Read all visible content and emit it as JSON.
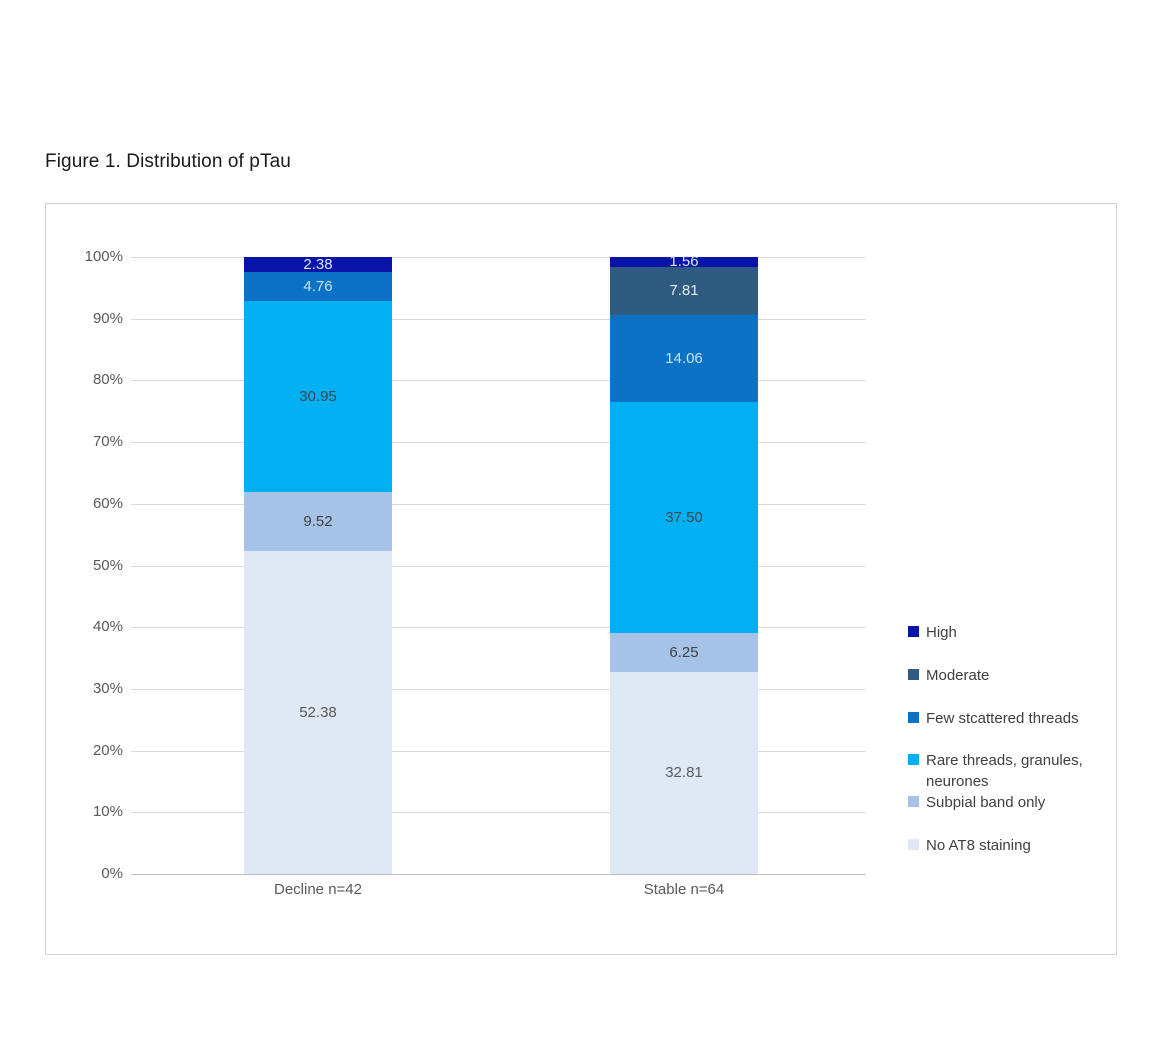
{
  "page": {
    "title": "Figure 1. Distribution of pTau"
  },
  "chart_data": {
    "type": "bar",
    "subtype": "stacked-100-percent-column",
    "title": "Figure 1. Distribution of pTau",
    "categories": [
      "Decline n=42",
      "Stable n=64"
    ],
    "series": [
      {
        "name": "High",
        "color": "#0813a8",
        "label_color": "#dce6f6",
        "values": [
          2.38,
          1.56
        ]
      },
      {
        "name": "Moderate",
        "color": "#2e5b7f",
        "label_color": "#e6edf5",
        "values": [
          0,
          7.81
        ]
      },
      {
        "name": "Few stcattered threads",
        "color": "#0b72c6",
        "label_color": "#c9e2f6",
        "values": [
          4.76,
          14.06
        ]
      },
      {
        "name": "Rare threads, granules, neurones",
        "color": "#00b0f0",
        "label_color": "#3d4752",
        "values": [
          30.95,
          37.5
        ]
      },
      {
        "name": "Subpial band only",
        "color": "#a6c3e7",
        "label_color": "#404040",
        "values": [
          9.52,
          6.25
        ]
      },
      {
        "name": "No AT8 staining",
        "color": "#dee9f5",
        "label_color": "#595959",
        "values": [
          52.38,
          32.81
        ]
      }
    ],
    "xlabel": "",
    "ylabel": "",
    "ylim": [
      0,
      100
    ],
    "ytick_step": 10,
    "ytick_format": "percent",
    "value_label_decimals": 2,
    "grid": true,
    "legend_position": "right",
    "axis_text_color": "#595959",
    "gridline_color": "#d9d9d9"
  }
}
